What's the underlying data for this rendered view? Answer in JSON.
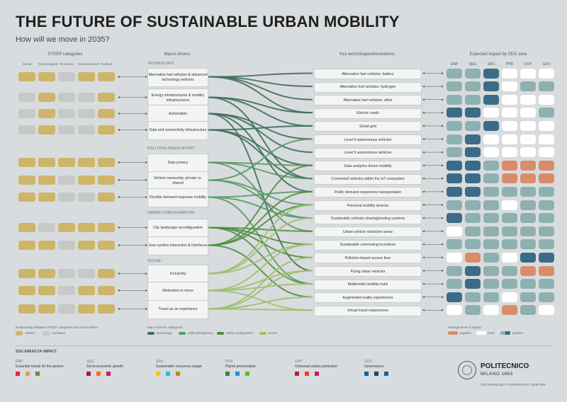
{
  "title": "THE FUTURE OF SUSTAINABLE URBAN MOBILITY",
  "subtitle": "How will we move in 2035?",
  "column_headers": {
    "steep": "STEEP categories",
    "drivers": "Macro-drivers",
    "tech": "Key technologies/innovations",
    "impact": "Expected impact by SDG area"
  },
  "steep_categories": [
    "Social",
    "Technological",
    "Economic",
    "Environmental",
    "Political"
  ],
  "colors": {
    "related": "#cdb66a",
    "unrelated": "#c7c8c8",
    "technology": "#3d6f5c",
    "political": "#5a9a68",
    "urban": "#4f8e3f",
    "social": "#9cc16a",
    "negative": "#d98c6a",
    "none": "#ffffff",
    "positive_dark": "#3b6b86",
    "positive_light": "#8fb0b0"
  },
  "sections": {
    "technology": "TECHNOLOGY",
    "political": "POLITICAL/REGULATORY",
    "urban": "URBAN CONFIGURATION",
    "social": "SOCIAL"
  },
  "drivers": [
    {
      "label": "Alternative fuel vehicles & advanced technology vehicles",
      "steep": [
        1,
        1,
        0,
        1,
        1
      ],
      "cat": "technology"
    },
    {
      "label": "Energy infrastructures & mobility infrastructures",
      "steep": [
        0,
        1,
        0,
        0,
        1
      ],
      "cat": "technology"
    },
    {
      "label": "Automation",
      "steep": [
        0,
        1,
        0,
        0,
        1
      ],
      "cat": "technology"
    },
    {
      "label": "Data and connectivity infrastructure",
      "steep": [
        0,
        1,
        0,
        0,
        1
      ],
      "cat": "technology"
    },
    {
      "label": "Data privacy",
      "steep": [
        1,
        1,
        1,
        1,
        1
      ],
      "cat": "political"
    },
    {
      "label": "Vehicle ownership: private vs. shared",
      "steep": [
        1,
        1,
        0,
        1,
        1
      ],
      "cat": "political"
    },
    {
      "label": "Flexible demand-response mobility",
      "steep": [
        1,
        1,
        0,
        0,
        1
      ],
      "cat": "political"
    },
    {
      "label": "City landscape reconfiguration",
      "steep": [
        1,
        0,
        1,
        1,
        1
      ],
      "cat": "urban"
    },
    {
      "label": "User-system interaction & interfaces",
      "steep": [
        1,
        1,
        0,
        1,
        1
      ],
      "cat": "urban"
    },
    {
      "label": "Inclusivity",
      "steep": [
        1,
        1,
        0,
        0,
        1
      ],
      "cat": "social"
    },
    {
      "label": "Motivation to move",
      "steep": [
        1,
        1,
        0,
        1,
        1
      ],
      "cat": "social"
    },
    {
      "label": "Travel as an experience",
      "steep": [
        1,
        1,
        0,
        1,
        1
      ],
      "cat": "social"
    }
  ],
  "sdg_columns": [
    "ENP",
    "SEG",
    "SRU",
    "PPR",
    "UVP",
    "GOV"
  ],
  "technologies": [
    {
      "label": "Alternative fuel vehicles: battery",
      "impact": [
        "L",
        "L",
        "D",
        "N",
        "N",
        "N"
      ]
    },
    {
      "label": "Alternative fuel vehicles: hydrogen",
      "impact": [
        "L",
        "L",
        "D",
        "N",
        "L",
        "L"
      ]
    },
    {
      "label": "Alternative fuel vehicles: other",
      "impact": [
        "L",
        "L",
        "D",
        "N",
        "N",
        "N"
      ]
    },
    {
      "label": "Electric roads",
      "impact": [
        "D",
        "D",
        "N",
        "N",
        "N",
        "L"
      ]
    },
    {
      "label": "Smart grid",
      "impact": [
        "L",
        "L",
        "D",
        "N",
        "N",
        "N"
      ]
    },
    {
      "label": "Level 4 autonomous vehicles",
      "impact": [
        "L",
        "D",
        "N",
        "N",
        "N",
        "N"
      ]
    },
    {
      "label": "Level 5 autonomous vehicles",
      "impact": [
        "L",
        "D",
        "N",
        "N",
        "N",
        "N"
      ]
    },
    {
      "label": "Data analytics driven mobility",
      "impact": [
        "D",
        "D",
        "L",
        "O",
        "O",
        "O"
      ]
    },
    {
      "label": "Connected vehicles within the IoT ecosystem",
      "impact": [
        "D",
        "D",
        "L",
        "O",
        "O",
        "O"
      ]
    },
    {
      "label": "Public demand-responsive transportation",
      "impact": [
        "D",
        "D",
        "L",
        "L",
        "L",
        "L"
      ]
    },
    {
      "label": "Personal mobility devices",
      "impact": [
        "L",
        "L",
        "L",
        "N",
        "L",
        "L"
      ]
    },
    {
      "label": "Sustainable vehicles sharing/pooling systems",
      "impact": [
        "D",
        "L",
        "L",
        "L",
        "L",
        "L"
      ]
    },
    {
      "label": "Urban vehicle restriction areas",
      "impact": [
        "N",
        "L",
        "L",
        "L",
        "L",
        "L"
      ]
    },
    {
      "label": "Sustainable commuting incentives",
      "impact": [
        "L",
        "L",
        "L",
        "L",
        "L",
        "L"
      ]
    },
    {
      "label": "Pollution-based access fees",
      "impact": [
        "N",
        "O",
        "L",
        "N",
        "D",
        "D"
      ]
    },
    {
      "label": "Flying urban vehicles",
      "impact": [
        "L",
        "D",
        "L",
        "L",
        "O",
        "O"
      ]
    },
    {
      "label": "Multimodal mobility hubs",
      "impact": [
        "L",
        "D",
        "L",
        "L",
        "L",
        "L"
      ]
    },
    {
      "label": "Augmented reality experiences",
      "impact": [
        "D",
        "L",
        "L",
        "N",
        "L",
        "L"
      ]
    },
    {
      "label": "Virtual travel experiences",
      "impact": [
        "N",
        "L",
        "N",
        "O",
        "L",
        "N"
      ]
    }
  ],
  "legend_left": {
    "title": "Relationship between STEEP categories and macro-driver",
    "related": "related",
    "unrelated": "unrelated"
  },
  "legend_mid": {
    "title": "Macro-drivers categories",
    "items": [
      "technology",
      "political/regulatory",
      "urban configuration",
      "social"
    ]
  },
  "legend_right": {
    "title": "Average level of impact",
    "negative": "negative",
    "none": "none",
    "positive": "positive"
  },
  "sdg_areas_title": "SDG AREAS OF IMPACT",
  "sdg_areas": [
    {
      "code": "ENP",
      "name": "Essential needs for the person"
    },
    {
      "code": "SEG",
      "name": "Socio-economic growth"
    },
    {
      "code": "SRU",
      "name": "Sustainable resources usage"
    },
    {
      "code": "PPR",
      "name": "Planet preservation"
    },
    {
      "code": "UVP",
      "name": "Universal values protection"
    },
    {
      "code": "GOV",
      "name": "Governance"
    }
  ],
  "brand": {
    "name": "POLITECNICO",
    "sub": "MILANO 1863",
    "center": "TECHNOLOGY FORESIGHT CENTER"
  }
}
